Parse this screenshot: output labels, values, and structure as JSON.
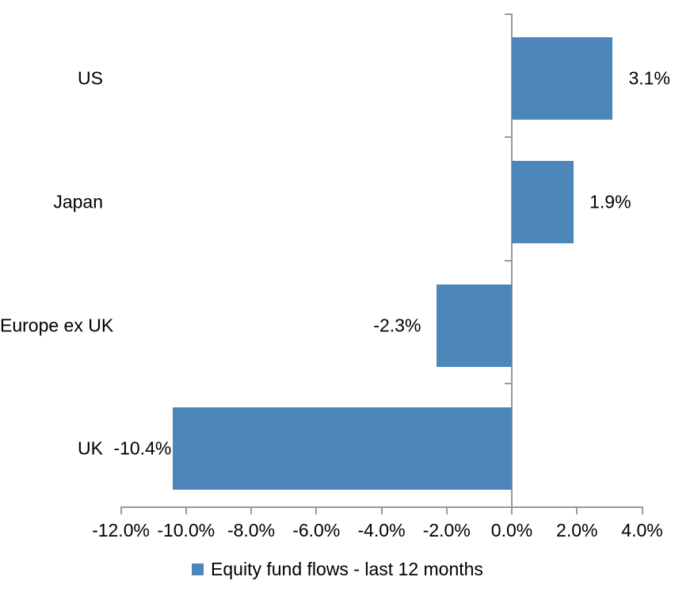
{
  "chart_data": {
    "type": "bar",
    "orientation": "horizontal",
    "categories": [
      "US",
      "Japan",
      "Europe ex UK",
      "UK"
    ],
    "values": [
      3.1,
      1.9,
      -2.3,
      -10.4
    ],
    "value_labels": [
      "3.1%",
      "1.9%",
      "-2.3%",
      "-10.4%"
    ],
    "series": [
      {
        "name": "Equity fund flows - last 12 months",
        "values": [
          3.1,
          1.9,
          -2.3,
          -10.4
        ]
      }
    ],
    "title": "",
    "xlabel": "",
    "ylabel": "",
    "x_axis": {
      "range": [
        -12,
        4
      ],
      "ticks": [
        -12,
        -10,
        -8,
        -6,
        -4,
        -2,
        0,
        2,
        4
      ],
      "tick_labels": [
        "-12.0%",
        "-10.0%",
        "-8.0%",
        "-6.0%",
        "-4.0%",
        "-2.0%",
        "0.0%",
        "2.0%",
        "4.0%"
      ]
    },
    "grid": false,
    "legend": {
      "label": "Equity fund flows - last 12 months",
      "position": "bottom",
      "marker_color": "#4D87BA"
    },
    "colors": {
      "bar": "#4D87BA",
      "axis": "#9A9A9A",
      "text": "#000000",
      "background": "#FFFFFF"
    }
  }
}
